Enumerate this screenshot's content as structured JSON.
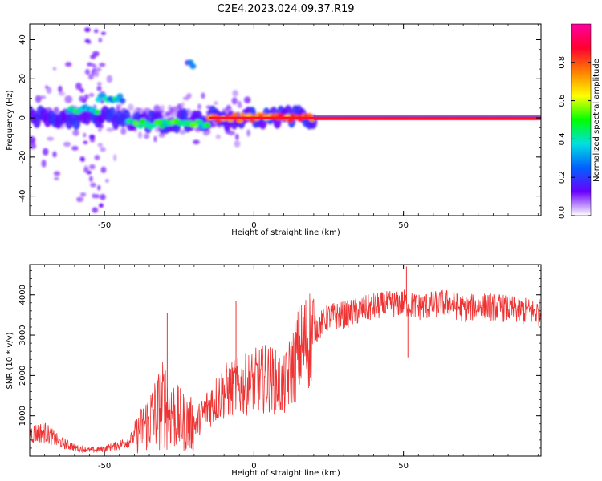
{
  "title": "C2E4.2023.024.09.37.R19",
  "chart_data": [
    {
      "type": "heatmap",
      "xlabel": "Height of straight line (km)",
      "ylabel": "Frequency (Hz)",
      "xlim": [
        -75,
        96
      ],
      "ylim": [
        -50,
        48
      ],
      "xticks": [
        -50,
        0,
        50
      ],
      "yticks": [
        -40,
        -20,
        0,
        20,
        40
      ],
      "colorbar": {
        "label": "Normalized spectral amplitude",
        "range": [
          0,
          1
        ],
        "ticks": [
          "0.0",
          "0.2",
          "0.4",
          "0.6",
          "0.8"
        ],
        "colormap": [
          "#ffffff",
          "#6a00ff",
          "#0060ff",
          "#00e0e0",
          "#00ff00",
          "#ffff00",
          "#ff8000",
          "#ff0030",
          "#ff00a0"
        ]
      },
      "features": [
        {
          "x_range": [
            20,
            96
          ],
          "freq_hz": 0,
          "amplitude": 0.95
        },
        {
          "x_range": [
            -15,
            20
          ],
          "freq_hz": 0,
          "amplitude": 0.8
        },
        {
          "x_range": [
            -42,
            -15
          ],
          "freq_hz": -3,
          "amplitude": 0.45
        },
        {
          "x_range": [
            -62,
            -52
          ],
          "freq_hz": 4,
          "amplitude": 0.4
        },
        {
          "x_range": [
            -52,
            -44
          ],
          "freq_hz": 10,
          "amplitude": 0.35
        },
        {
          "x_range": [
            -22,
            -20
          ],
          "freq_hz": 27,
          "amplitude": 0.2
        }
      ]
    },
    {
      "type": "line",
      "xlabel": "Height of straight line (km)",
      "ylabel": "SNR (10 * v/v)",
      "xlim": [
        -75,
        96
      ],
      "ylim": [
        0,
        4750
      ],
      "xticks": [
        -50,
        0,
        50
      ],
      "yticks": [
        1000,
        2000,
        3000,
        4000
      ],
      "color": "#ee3333",
      "series": [
        {
          "x": [
            -75,
            -70,
            -65,
            -60,
            -55,
            -50,
            -45,
            -40,
            -35,
            -30,
            -25,
            -20,
            -15,
            -10,
            -5,
            0,
            5,
            10,
            15,
            20,
            25,
            30,
            35,
            40,
            45,
            50,
            55,
            60,
            65,
            70,
            75,
            80,
            85,
            90,
            96
          ],
          "values": [
            550,
            600,
            350,
            220,
            150,
            180,
            280,
            450,
            900,
            1300,
            900,
            750,
            1250,
            1600,
            1700,
            1850,
            1950,
            1700,
            2600,
            3100,
            3450,
            3500,
            3600,
            3700,
            3750,
            3800,
            3700,
            3750,
            3800,
            3650,
            3700,
            3700,
            3650,
            3600,
            3550
          ]
        }
      ],
      "peaks": [
        {
          "x": -29,
          "value": 3550
        },
        {
          "x": -6,
          "value": 3850
        },
        {
          "x": 51,
          "value": 4700
        },
        {
          "x": 51.5,
          "value": 2450
        }
      ]
    }
  ]
}
